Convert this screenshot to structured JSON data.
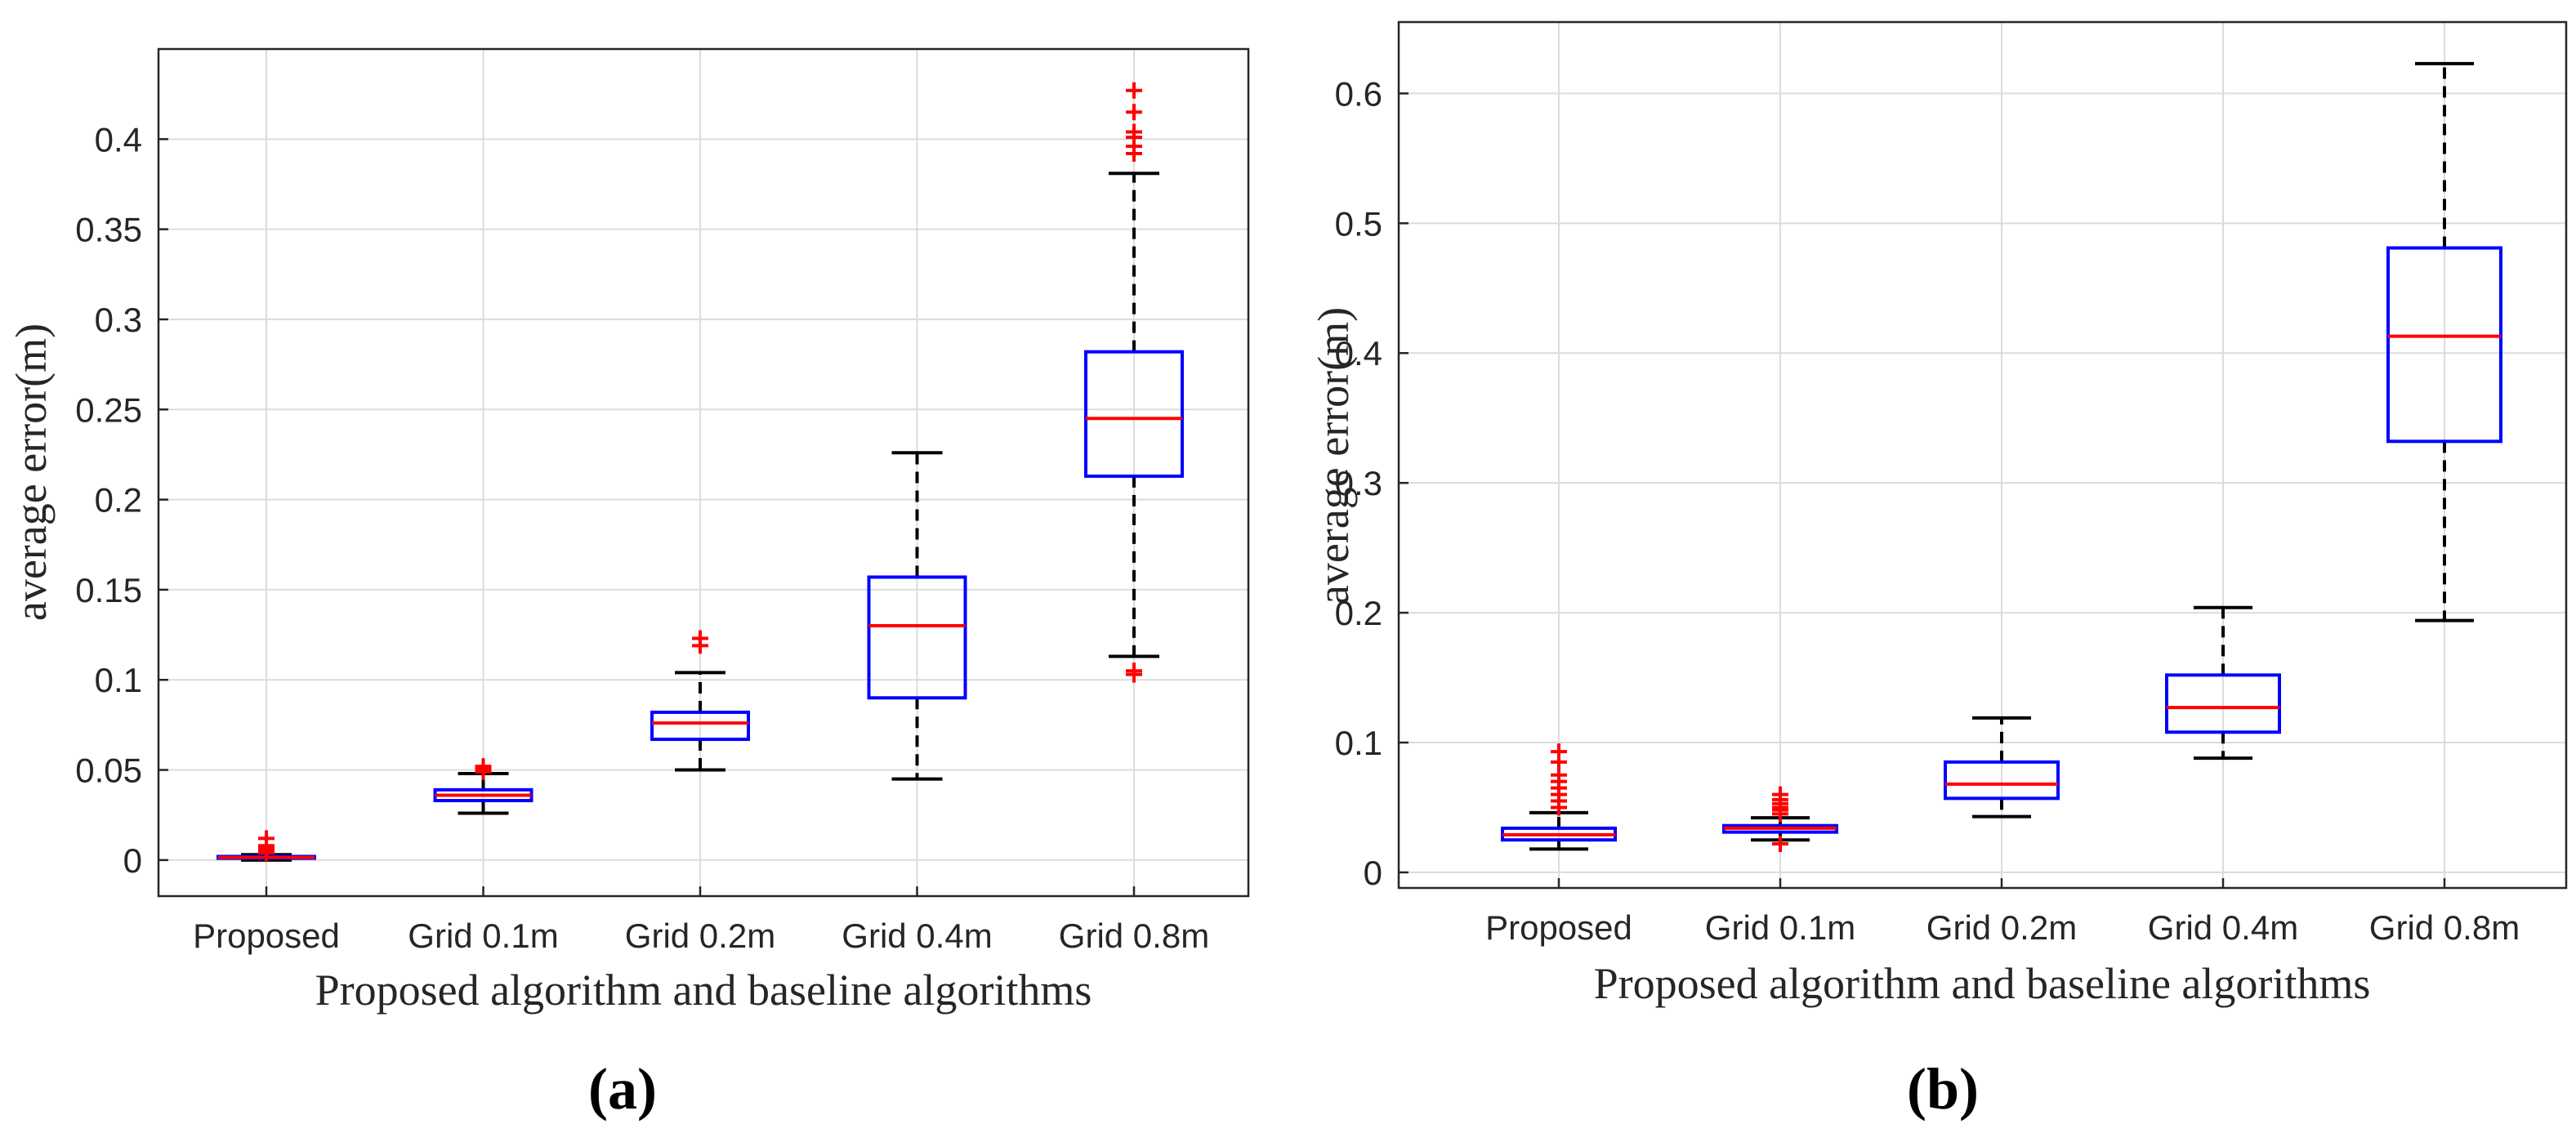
{
  "chart_data": [
    {
      "type": "box",
      "panel_label": "(a)",
      "xlabel": "Proposed algorithm and baseline algorithms",
      "ylabel": "average error(m)",
      "ylim": [
        -0.02,
        0.45
      ],
      "yticks": [
        0,
        0.05,
        0.1,
        0.15,
        0.2,
        0.25,
        0.3,
        0.35,
        0.4
      ],
      "ytick_labels": [
        "0",
        "0.05",
        "0.1",
        "0.15",
        "0.2",
        "0.25",
        "0.3",
        "0.35",
        "0.4"
      ],
      "grid": true,
      "categories": [
        "Proposed",
        "Grid 0.1m",
        "Grid 0.2m",
        "Grid 0.4m",
        "Grid 0.8m"
      ],
      "boxes": [
        {
          "whisker_low": 0.0,
          "q1": 0.001,
          "median": 0.0015,
          "q3": 0.002,
          "whisker_high": 0.003,
          "outliers": [
            0.004,
            0.005,
            0.006,
            0.007,
            0.008,
            0.012
          ]
        },
        {
          "whisker_low": 0.026,
          "q1": 0.033,
          "median": 0.036,
          "q3": 0.039,
          "whisker_high": 0.048,
          "outliers": [
            0.049,
            0.05,
            0.051,
            0.052
          ]
        },
        {
          "whisker_low": 0.05,
          "q1": 0.067,
          "median": 0.076,
          "q3": 0.082,
          "whisker_high": 0.104,
          "outliers": [
            0.119,
            0.123
          ]
        },
        {
          "whisker_low": 0.045,
          "q1": 0.09,
          "median": 0.13,
          "q3": 0.157,
          "whisker_high": 0.226,
          "outliers": []
        },
        {
          "whisker_low": 0.113,
          "q1": 0.213,
          "median": 0.245,
          "q3": 0.282,
          "whisker_high": 0.381,
          "outliers": [
            0.103,
            0.105,
            0.392,
            0.396,
            0.401,
            0.404,
            0.415,
            0.427
          ]
        }
      ]
    },
    {
      "type": "box",
      "panel_label": "(b)",
      "xlabel": "Proposed algorithm and baseline algorithms",
      "ylabel": "average error(m)",
      "ylim": [
        -0.012,
        0.655
      ],
      "yticks": [
        0,
        0.1,
        0.2,
        0.3,
        0.4,
        0.5,
        0.6
      ],
      "ytick_labels": [
        "0",
        "0.1",
        "0.2",
        "0.3",
        "0.4",
        "0.5",
        "0.6"
      ],
      "grid": true,
      "categories": [
        "Proposed",
        "Grid 0.1m",
        "Grid 0.2m",
        "Grid 0.4m",
        "Grid 0.8m"
      ],
      "boxes": [
        {
          "whisker_low": 0.018,
          "q1": 0.025,
          "median": 0.029,
          "q3": 0.034,
          "whisker_high": 0.046,
          "outliers": [
            0.05,
            0.055,
            0.06,
            0.065,
            0.07,
            0.075,
            0.085,
            0.093
          ]
        },
        {
          "whisker_low": 0.025,
          "q1": 0.031,
          "median": 0.034,
          "q3": 0.036,
          "whisker_high": 0.042,
          "outliers": [
            0.022,
            0.045,
            0.048,
            0.05,
            0.053,
            0.056,
            0.06
          ]
        },
        {
          "whisker_low": 0.043,
          "q1": 0.057,
          "median": 0.068,
          "q3": 0.085,
          "whisker_high": 0.119,
          "outliers": []
        },
        {
          "whisker_low": 0.088,
          "q1": 0.108,
          "median": 0.127,
          "q3": 0.152,
          "whisker_high": 0.204,
          "outliers": []
        },
        {
          "whisker_low": 0.194,
          "q1": 0.332,
          "median": 0.413,
          "q3": 0.481,
          "whisker_high": 0.623,
          "outliers": []
        }
      ]
    }
  ]
}
